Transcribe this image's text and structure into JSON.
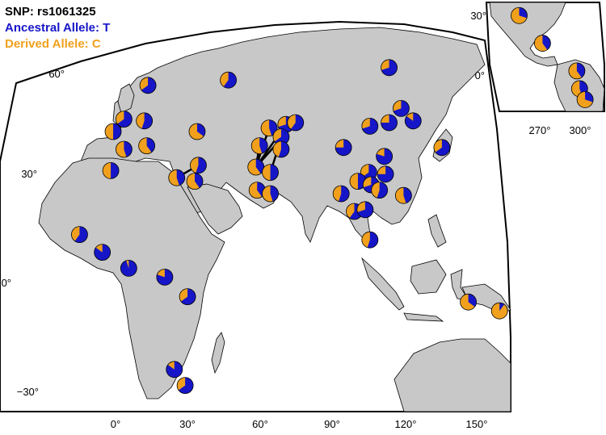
{
  "legend": {
    "title": "SNP: rs1061325",
    "ancestral": "Ancestral Allele: T",
    "derived": "Derived Allele: C"
  },
  "colors": {
    "ancestral": "#1616c8",
    "derived": "#f0a01c",
    "land": "#c8c8c8",
    "ocean": "#ffffff",
    "outline": "#000000"
  },
  "main_map": {
    "lat_ticks": [
      "60°",
      "30°",
      "0°",
      "−30°"
    ],
    "lon_ticks": [
      "0°",
      "30°",
      "60°",
      "90°",
      "120°",
      "150°"
    ]
  },
  "inset_map": {
    "lat_ticks": [
      "30°",
      "0°"
    ],
    "lon_ticks": [
      "270°",
      "300°"
    ]
  },
  "chart_data": {
    "type": "map-pie",
    "title": "SNP: rs1061325",
    "series": [
      {
        "name": "Ancestral Allele: T"
      },
      {
        "name": "Derived Allele: C"
      }
    ],
    "populations_main": [
      {
        "lon": 13.5,
        "lat": 55.5,
        "derived_freq": 0.35
      },
      {
        "lon": 47,
        "lat": 57,
        "derived_freq": 0.4
      },
      {
        "lon": 114,
        "lat": 60.5,
        "derived_freq": 0.3
      },
      {
        "lon": 3.5,
        "lat": 46,
        "derived_freq": 0.35
      },
      {
        "lon": 12,
        "lat": 45.5,
        "derived_freq": 0.45
      },
      {
        "lon": -1,
        "lat": 42.5,
        "derived_freq": 0.5
      },
      {
        "lon": 34,
        "lat": 42.5,
        "derived_freq": 0.65
      },
      {
        "lon": 3.5,
        "lat": 37.5,
        "derived_freq": 0.55
      },
      {
        "lon": 13,
        "lat": 38.5,
        "derived_freq": 0.6
      },
      {
        "lon": -2,
        "lat": 31.5,
        "derived_freq": 0.5
      },
      {
        "lon": 34.5,
        "lat": 33,
        "derived_freq": 0.45
      },
      {
        "lon": 25.5,
        "lat": 29.5,
        "derived_freq": 0.55
      },
      {
        "lon": 33,
        "lat": 28.5,
        "derived_freq": 0.6
      },
      {
        "lon": 64,
        "lat": 43.5,
        "derived_freq": 0.55
      },
      {
        "lon": 71,
        "lat": 44.5,
        "derived_freq": 0.3
      },
      {
        "lon": 75,
        "lat": 45,
        "derived_freq": 0.4
      },
      {
        "lon": 69,
        "lat": 41,
        "derived_freq": 0.35
      },
      {
        "lon": 60,
        "lat": 38.5,
        "derived_freq": 0.55
      },
      {
        "lon": 69,
        "lat": 37.5,
        "derived_freq": 0.45
      },
      {
        "lon": 58.5,
        "lat": 32.5,
        "derived_freq": 0.6
      },
      {
        "lon": 64.5,
        "lat": 31,
        "derived_freq": 0.5
      },
      {
        "lon": 59,
        "lat": 26,
        "derived_freq": 0.6
      },
      {
        "lon": 64.5,
        "lat": 25,
        "derived_freq": 0.55
      },
      {
        "lon": 119,
        "lat": 49,
        "derived_freq": 0.3
      },
      {
        "lon": 106,
        "lat": 44,
        "derived_freq": 0.3
      },
      {
        "lon": 114,
        "lat": 45,
        "derived_freq": 0.25
      },
      {
        "lon": 124,
        "lat": 45.5,
        "derived_freq": 0.15
      },
      {
        "lon": 95,
        "lat": 38,
        "derived_freq": 0.25
      },
      {
        "lon": 112,
        "lat": 35.5,
        "derived_freq": 0.2
      },
      {
        "lon": 136,
        "lat": 38,
        "derived_freq": 0.35
      },
      {
        "lon": 105.5,
        "lat": 31,
        "derived_freq": 0.35
      },
      {
        "lon": 112.5,
        "lat": 30.5,
        "derived_freq": 0.25
      },
      {
        "lon": 101,
        "lat": 28.5,
        "derived_freq": 0.5
      },
      {
        "lon": 106.5,
        "lat": 27.5,
        "derived_freq": 0.3
      },
      {
        "lon": 94,
        "lat": 25,
        "derived_freq": 0.45
      },
      {
        "lon": 110,
        "lat": 26,
        "derived_freq": 0.45
      },
      {
        "lon": 120,
        "lat": 24.5,
        "derived_freq": 0.55
      },
      {
        "lon": 99.5,
        "lat": 20,
        "derived_freq": 0.4
      },
      {
        "lon": 104,
        "lat": 20.5,
        "derived_freq": 0.3
      },
      {
        "lon": 106,
        "lat": 12,
        "derived_freq": 0.45
      },
      {
        "lon": -15,
        "lat": 13.5,
        "derived_freq": 0.4
      },
      {
        "lon": -5.5,
        "lat": 8.5,
        "derived_freq": 0.15
      },
      {
        "lon": 5.5,
        "lat": 4,
        "derived_freq": 0.05
      },
      {
        "lon": 20.5,
        "lat": 1.5,
        "derived_freq": 0.2
      },
      {
        "lon": 30,
        "lat": -4,
        "derived_freq": 0.35
      },
      {
        "lon": 24.5,
        "lat": -24.5,
        "derived_freq": 0.15
      },
      {
        "lon": 29,
        "lat": -29,
        "derived_freq": 0.35
      },
      {
        "lon": 147,
        "lat": -5.5,
        "derived_freq": 0.65
      },
      {
        "lon": 160,
        "lat": -8,
        "derived_freq": 0.9
      }
    ],
    "populations_inset": [
      {
        "lon": 255,
        "lat": 30.5,
        "derived_freq": 0.7
      },
      {
        "lon": 272,
        "lat": 16.5,
        "derived_freq": 0.6
      },
      {
        "lon": 297,
        "lat": 2.5,
        "derived_freq": 0.6
      },
      {
        "lon": 299,
        "lat": -6.5,
        "derived_freq": 0.55
      },
      {
        "lon": 303,
        "lat": -12,
        "derived_freq": 0.7
      }
    ],
    "connections": [
      [
        13,
        16
      ],
      [
        13,
        19
      ],
      [
        14,
        19
      ],
      [
        14,
        20
      ],
      [
        15,
        19
      ],
      [
        17,
        19
      ],
      [
        10,
        11
      ],
      [
        10,
        12
      ]
    ]
  }
}
